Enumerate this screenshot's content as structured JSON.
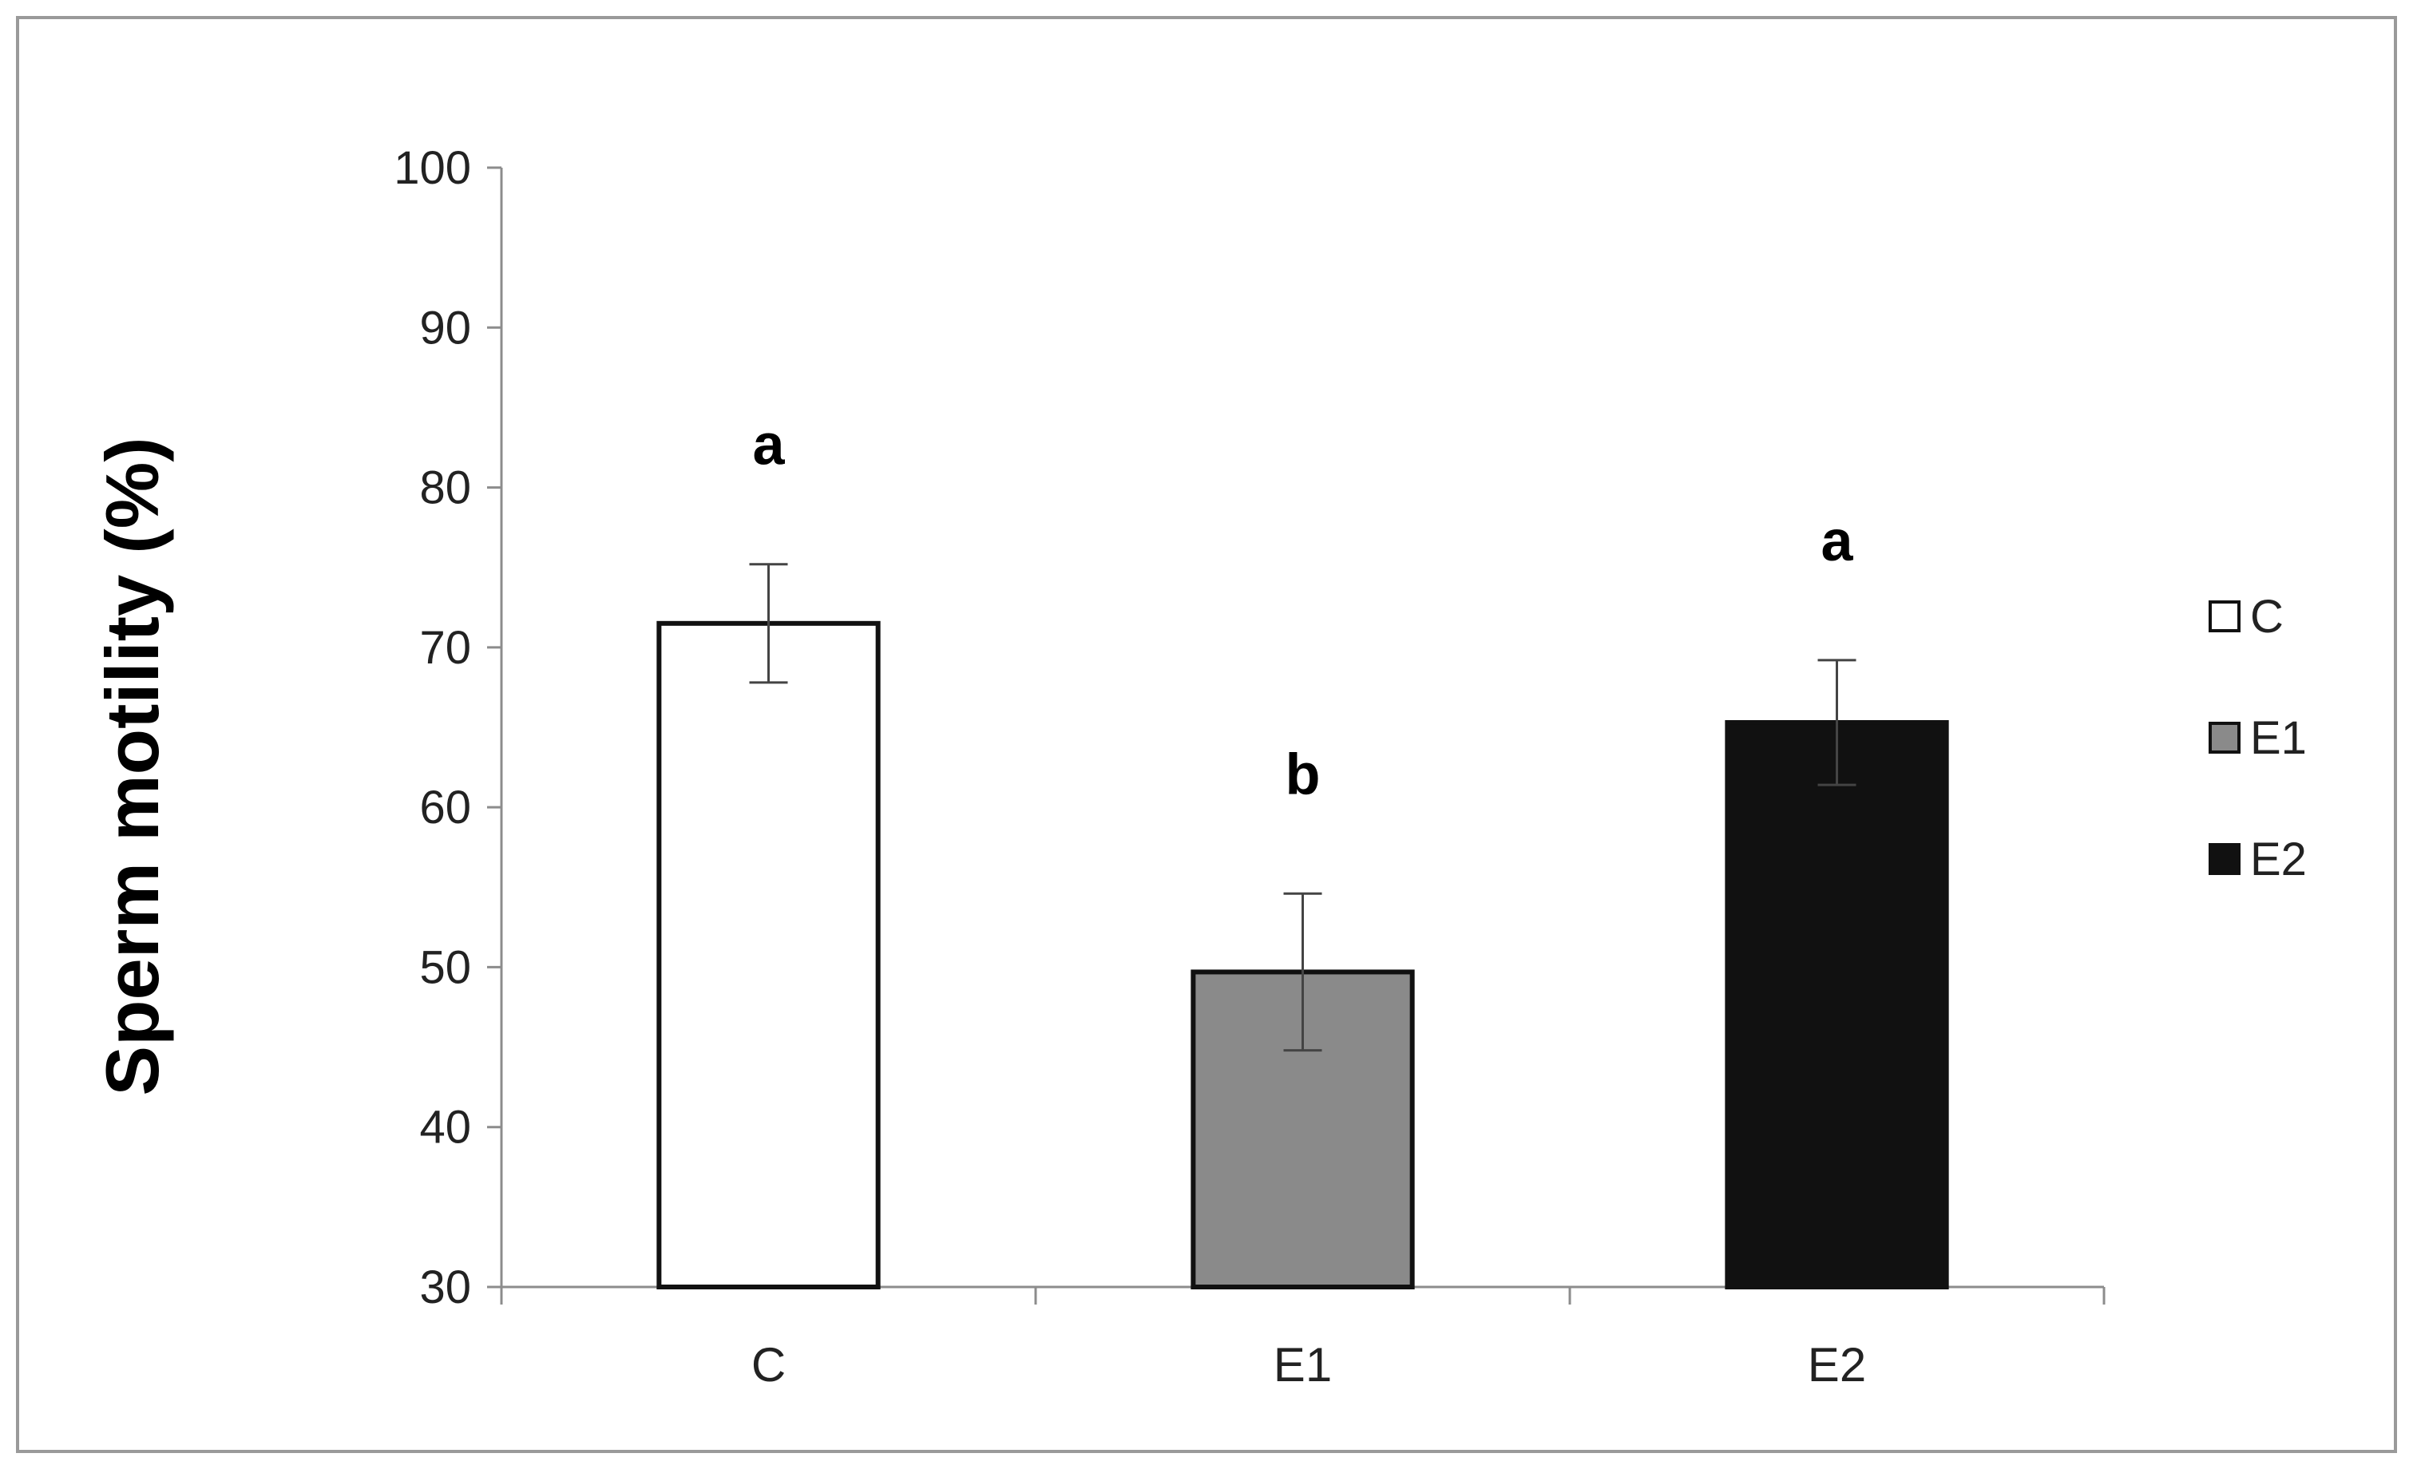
{
  "chart_data": {
    "type": "bar",
    "title": "",
    "xlabel": "",
    "ylabel": "Sperm motility (%)",
    "ylim": [
      30,
      100
    ],
    "yticks": [
      30,
      40,
      50,
      60,
      70,
      80,
      90,
      100
    ],
    "grid": false,
    "legend_position": "right",
    "categories": [
      "C",
      "E1",
      "E2"
    ],
    "values": [
      71.5,
      49.7,
      65.3
    ],
    "errors": [
      3.7,
      4.9,
      3.9
    ],
    "significance_labels": [
      "a",
      "b",
      "a"
    ],
    "colors": [
      "#ffffff",
      "#8a8a8a",
      "#111111"
    ],
    "legend": [
      {
        "label": "C",
        "color": "#ffffff"
      },
      {
        "label": "E1",
        "color": "#8a8a8a"
      },
      {
        "label": "E2",
        "color": "#111111"
      }
    ]
  }
}
